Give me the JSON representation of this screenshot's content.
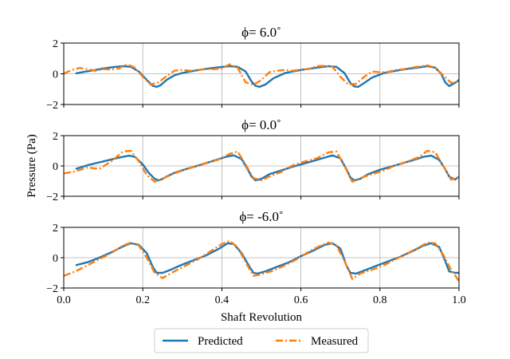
{
  "chart_data": {
    "type": "line",
    "xlabel": "Shaft Revolution",
    "ylabel": "Pressure (Pa)",
    "xlim": [
      0.0,
      1.0
    ],
    "xticks": [
      "0.0",
      "0.2",
      "0.4",
      "0.6",
      "0.8",
      "1.0"
    ],
    "xtick_values": [
      0.0,
      0.2,
      0.4,
      0.6,
      0.8,
      1.0
    ],
    "ylim": [
      -2,
      2
    ],
    "yticks": [
      "−2",
      "0",
      "2"
    ],
    "ytick_values": [
      -2,
      0,
      2
    ],
    "grid": true,
    "legend": {
      "placement": "bottom-center",
      "entries": [
        "Predicted",
        "Measured"
      ]
    },
    "colors": {
      "Predicted": "#1f77b4",
      "Measured": "#ff7f0e"
    },
    "panels": [
      {
        "title": "ϕ=  6.0˚",
        "series": [
          {
            "name": "Predicted",
            "x": [
              0.03,
              0.05,
              0.08,
              0.1,
              0.13,
              0.15,
              0.17,
              0.19,
              0.21,
              0.225,
              0.235,
              0.245,
              0.26,
              0.28,
              0.3,
              0.33,
              0.36,
              0.39,
              0.42,
              0.44,
              0.46,
              0.475,
              0.485,
              0.495,
              0.51,
              0.53,
              0.56,
              0.6,
              0.64,
              0.67,
              0.69,
              0.71,
              0.725,
              0.735,
              0.745,
              0.76,
              0.78,
              0.81,
              0.84,
              0.87,
              0.9,
              0.92,
              0.94,
              0.955,
              0.965,
              0.975,
              0.99,
              1.0
            ],
            "y": [
              0.02,
              0.12,
              0.25,
              0.35,
              0.45,
              0.5,
              0.45,
              0.15,
              -0.4,
              -0.78,
              -0.85,
              -0.75,
              -0.4,
              -0.1,
              0.05,
              0.2,
              0.32,
              0.42,
              0.5,
              0.45,
              0.15,
              -0.5,
              -0.78,
              -0.85,
              -0.7,
              -0.3,
              0.05,
              0.25,
              0.4,
              0.5,
              0.45,
              0.05,
              -0.6,
              -0.82,
              -0.85,
              -0.6,
              -0.25,
              0.05,
              0.2,
              0.32,
              0.42,
              0.5,
              0.4,
              0.0,
              -0.55,
              -0.8,
              -0.6,
              -0.4
            ]
          },
          {
            "name": "Measured",
            "x": [
              0.0,
              0.02,
              0.04,
              0.06,
              0.08,
              0.1,
              0.12,
              0.14,
              0.16,
              0.18,
              0.2,
              0.22,
              0.24,
              0.26,
              0.28,
              0.3,
              0.32,
              0.34,
              0.36,
              0.38,
              0.4,
              0.42,
              0.44,
              0.46,
              0.48,
              0.5,
              0.52,
              0.54,
              0.56,
              0.58,
              0.6,
              0.62,
              0.64,
              0.66,
              0.68,
              0.7,
              0.72,
              0.74,
              0.76,
              0.78,
              0.8,
              0.82,
              0.84,
              0.86,
              0.88,
              0.9,
              0.92,
              0.94,
              0.96,
              0.98,
              1.0
            ],
            "y": [
              0.0,
              0.25,
              0.38,
              0.3,
              0.2,
              0.3,
              0.28,
              0.35,
              0.62,
              0.4,
              -0.2,
              -0.7,
              -0.55,
              -0.15,
              0.2,
              0.25,
              0.2,
              0.25,
              0.3,
              0.3,
              0.35,
              0.62,
              0.4,
              -0.55,
              -0.72,
              -0.4,
              0.1,
              0.2,
              0.25,
              0.2,
              0.28,
              0.3,
              0.5,
              0.52,
              0.45,
              -0.2,
              -0.7,
              -0.65,
              -0.2,
              0.15,
              0.1,
              0.12,
              0.25,
              0.3,
              0.4,
              0.48,
              0.55,
              0.4,
              -0.1,
              -0.6,
              -0.5
            ]
          }
        ]
      },
      {
        "title": "ϕ=  0.0˚",
        "series": [
          {
            "name": "Predicted",
            "x": [
              0.03,
              0.06,
              0.1,
              0.14,
              0.165,
              0.18,
              0.2,
              0.215,
              0.23,
              0.24,
              0.25,
              0.26,
              0.28,
              0.31,
              0.35,
              0.38,
              0.41,
              0.43,
              0.45,
              0.465,
              0.475,
              0.485,
              0.5,
              0.52,
              0.55,
              0.58,
              0.62,
              0.66,
              0.68,
              0.7,
              0.715,
              0.725,
              0.735,
              0.75,
              0.77,
              0.8,
              0.84,
              0.88,
              0.91,
              0.93,
              0.95,
              0.965,
              0.975,
              0.99,
              1.0
            ],
            "y": [
              -0.2,
              0.05,
              0.3,
              0.55,
              0.68,
              0.6,
              0.1,
              -0.45,
              -0.85,
              -0.95,
              -0.85,
              -0.7,
              -0.45,
              -0.2,
              0.1,
              0.35,
              0.6,
              0.7,
              0.45,
              -0.2,
              -0.7,
              -0.95,
              -0.85,
              -0.55,
              -0.3,
              -0.05,
              0.25,
              0.55,
              0.7,
              0.5,
              -0.2,
              -0.75,
              -0.95,
              -0.85,
              -0.55,
              -0.25,
              0.05,
              0.35,
              0.6,
              0.68,
              0.4,
              -0.2,
              -0.7,
              -0.9,
              -0.7
            ]
          },
          {
            "name": "Measured",
            "x": [
              0.0,
              0.03,
              0.06,
              0.09,
              0.12,
              0.15,
              0.17,
              0.19,
              0.21,
              0.23,
              0.25,
              0.27,
              0.3,
              0.33,
              0.36,
              0.39,
              0.42,
              0.44,
              0.46,
              0.48,
              0.5,
              0.52,
              0.55,
              0.58,
              0.61,
              0.64,
              0.67,
              0.69,
              0.71,
              0.73,
              0.75,
              0.78,
              0.81,
              0.84,
              0.87,
              0.9,
              0.92,
              0.94,
              0.96,
              0.98,
              1.0
            ],
            "y": [
              -0.5,
              -0.35,
              -0.1,
              -0.2,
              0.3,
              0.95,
              1.0,
              0.3,
              -0.6,
              -1.05,
              -0.85,
              -0.6,
              -0.3,
              -0.05,
              0.2,
              0.4,
              0.8,
              0.95,
              0.1,
              -0.8,
              -0.95,
              -0.7,
              -0.4,
              0.05,
              0.3,
              0.5,
              0.9,
              0.95,
              0.0,
              -1.05,
              -0.8,
              -0.55,
              -0.3,
              0.05,
              0.3,
              0.6,
              1.0,
              0.9,
              0.0,
              -0.9,
              -0.75
            ]
          }
        ]
      },
      {
        "title": "ϕ=  -6.0˚",
        "series": [
          {
            "name": "Predicted",
            "x": [
              0.03,
              0.06,
              0.09,
              0.12,
              0.15,
              0.17,
              0.19,
              0.21,
              0.225,
              0.235,
              0.25,
              0.27,
              0.3,
              0.33,
              0.36,
              0.39,
              0.415,
              0.43,
              0.45,
              0.47,
              0.48,
              0.49,
              0.51,
              0.54,
              0.57,
              0.6,
              0.63,
              0.66,
              0.68,
              0.7,
              0.715,
              0.725,
              0.74,
              0.76,
              0.79,
              0.82,
              0.85,
              0.88,
              0.91,
              0.93,
              0.95,
              0.965,
              0.975,
              0.99,
              1.0
            ],
            "y": [
              -0.5,
              -0.3,
              0.0,
              0.35,
              0.75,
              0.95,
              0.85,
              0.3,
              -0.6,
              -1.0,
              -1.0,
              -0.8,
              -0.45,
              -0.15,
              0.15,
              0.55,
              0.95,
              0.9,
              0.3,
              -0.6,
              -1.0,
              -1.05,
              -0.9,
              -0.6,
              -0.3,
              0.1,
              0.45,
              0.85,
              0.95,
              0.6,
              -0.5,
              -1.0,
              -1.05,
              -0.85,
              -0.55,
              -0.25,
              0.05,
              0.4,
              0.8,
              0.95,
              0.7,
              -0.2,
              -0.9,
              -1.0,
              -1.0
            ]
          },
          {
            "name": "Measured",
            "x": [
              0.0,
              0.03,
              0.06,
              0.09,
              0.12,
              0.15,
              0.17,
              0.19,
              0.21,
              0.23,
              0.25,
              0.28,
              0.31,
              0.34,
              0.37,
              0.4,
              0.42,
              0.44,
              0.46,
              0.48,
              0.5,
              0.53,
              0.56,
              0.59,
              0.62,
              0.65,
              0.67,
              0.69,
              0.71,
              0.73,
              0.75,
              0.78,
              0.81,
              0.84,
              0.87,
              0.9,
              0.92,
              0.94,
              0.96,
              0.98,
              1.0
            ],
            "y": [
              -1.2,
              -0.9,
              -0.5,
              -0.1,
              0.3,
              0.8,
              1.0,
              0.8,
              0.0,
              -1.0,
              -1.35,
              -0.9,
              -0.5,
              -0.1,
              0.4,
              0.9,
              1.1,
              0.7,
              -0.3,
              -1.2,
              -1.1,
              -0.85,
              -0.5,
              -0.1,
              0.4,
              0.8,
              1.0,
              0.8,
              -0.2,
              -1.4,
              -1.05,
              -0.8,
              -0.5,
              -0.1,
              0.3,
              0.7,
              1.0,
              0.95,
              0.2,
              -0.8,
              -1.55
            ]
          }
        ]
      }
    ]
  }
}
